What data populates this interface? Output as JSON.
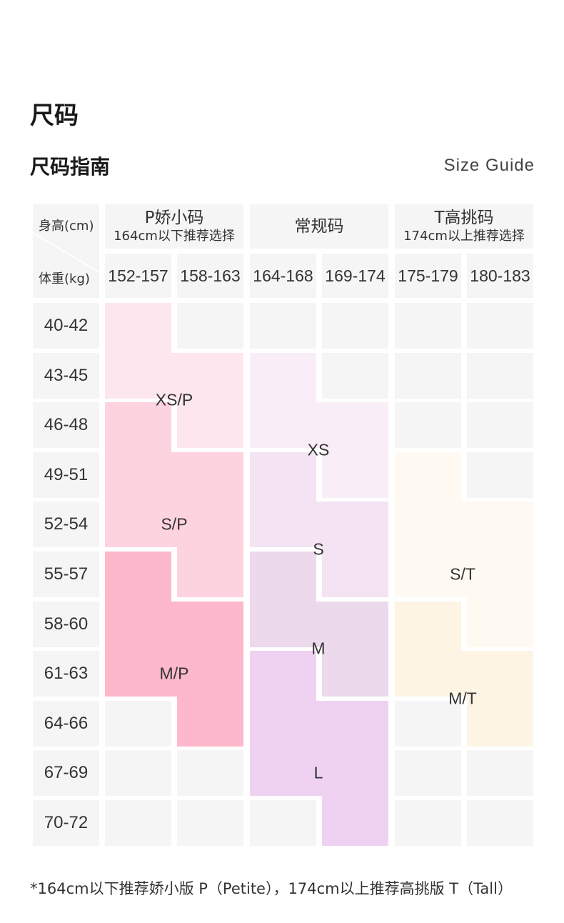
{
  "page": {
    "title": "尺码",
    "subtitle": "尺码指南",
    "guide_label": "Size Guide"
  },
  "table": {
    "corner": {
      "height_label": "身高(cm)",
      "weight_label": "体重(kg)"
    },
    "groups": [
      {
        "main": "P娇小码",
        "sub": "164cm以下推荐选择"
      },
      {
        "main": "常规码",
        "sub": ""
      },
      {
        "main": "T高挑码",
        "sub": "174cm以上推荐选择"
      }
    ],
    "height_ranges": [
      "152-157",
      "158-163",
      "164-168",
      "169-174",
      "175-179",
      "180-183"
    ],
    "weight_ranges": [
      "40-42",
      "43-45",
      "46-48",
      "49-51",
      "52-54",
      "55-57",
      "58-60",
      "61-63",
      "64-66",
      "67-69",
      "70-72"
    ]
  },
  "chart_data": {
    "type": "table",
    "colors": {
      "empty": "#f5f5f5",
      "XS/P": "#fde6ee",
      "S/P": "#fdd3df",
      "M/P": "#fdb9cb",
      "XS": "#f9eef7",
      "S": "#f4e3f3",
      "M": "#ecd9ec",
      "L": "#efd2f2",
      "S/T": "#fffaf1",
      "M/T": "#fdf4e4"
    },
    "grid": [
      [
        "XS/P",
        "",
        "",
        "",
        "",
        ""
      ],
      [
        "XS/P",
        "XS/P",
        "XS",
        "",
        "",
        ""
      ],
      [
        "S/P",
        "XS/P",
        "XS",
        "XS",
        "",
        ""
      ],
      [
        "S/P",
        "S/P",
        "S",
        "XS",
        "S/T",
        ""
      ],
      [
        "S/P",
        "S/P",
        "S",
        "S",
        "S/T",
        "S/T"
      ],
      [
        "M/P",
        "S/P",
        "M",
        "S",
        "S/T",
        "S/T"
      ],
      [
        "M/P",
        "M/P",
        "M",
        "M",
        "M/T",
        "S/T"
      ],
      [
        "M/P",
        "M/P",
        "L",
        "M",
        "M/T",
        "M/T"
      ],
      [
        "",
        "M/P",
        "L",
        "L",
        "",
        "M/T"
      ],
      [
        "",
        "",
        "L",
        "L",
        "",
        ""
      ],
      [
        "",
        "",
        "",
        "L",
        "",
        ""
      ]
    ],
    "labels": [
      {
        "text": "XS/P",
        "col": 1.0,
        "row": 1.5
      },
      {
        "text": "XS",
        "col": 3.0,
        "row": 2.5
      },
      {
        "text": "S/P",
        "col": 1.0,
        "row": 4.0
      },
      {
        "text": "S",
        "col": 3.0,
        "row": 4.5
      },
      {
        "text": "S/T",
        "col": 5.0,
        "row": 5.0
      },
      {
        "text": "M",
        "col": 3.0,
        "row": 6.5
      },
      {
        "text": "M/P",
        "col": 1.0,
        "row": 7.0
      },
      {
        "text": "M/T",
        "col": 5.0,
        "row": 7.5
      },
      {
        "text": "L",
        "col": 3.0,
        "row": 9.0
      }
    ]
  },
  "footnote": "*164cm以下推荐娇小版 P（Petite），174cm以上推荐高挑版 T（Tall）"
}
